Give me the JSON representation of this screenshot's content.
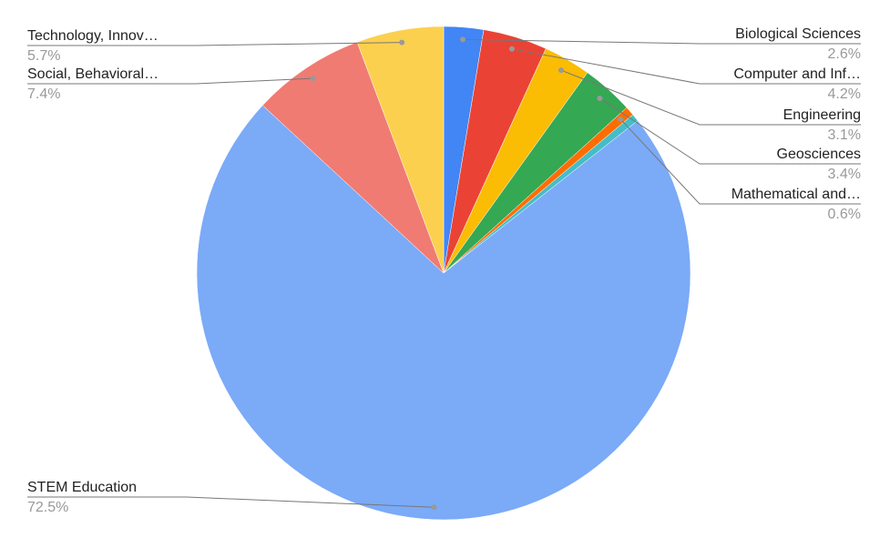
{
  "chart_data": {
    "type": "pie",
    "categories": [
      "Biological Sciences",
      "Computer and Inf…",
      "Engineering",
      "Geosciences",
      "Mathematical and…",
      null,
      "STEM Education",
      "Social, Behavioral…",
      "Technology, Innov…"
    ],
    "values": [
      2.6,
      4.2,
      3.1,
      3.4,
      0.6,
      0.5,
      72.5,
      7.4,
      5.7
    ],
    "value_labels": [
      "2.6%",
      "4.2%",
      "3.1%",
      "3.4%",
      "0.6%",
      null,
      "72.5%",
      "7.4%",
      "5.7%"
    ],
    "colors": [
      "#4285f4",
      "#ea4335",
      "#fbbc04",
      "#34a853",
      "#ff6d01",
      "#46bdc6",
      "#7baaf7",
      "#f07b72",
      "#fcd04f"
    ]
  }
}
